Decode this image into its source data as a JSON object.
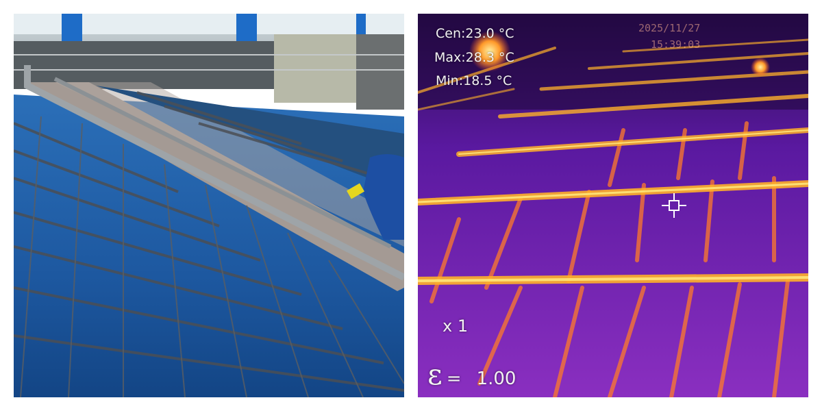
{
  "thermal": {
    "center_temp": "Cen:23.0 °C",
    "max_temp": "Max:28.3 °C",
    "min_temp": "Min:18.5 °C",
    "date": "2025/11/27",
    "time": "15:39:03",
    "zoom": "x 1",
    "emissivity_symbol": "ε",
    "emissivity_eq": "=",
    "emissivity_value": "1.00"
  },
  "colors": {
    "panel_blue": "#1f5fa8",
    "thermal_purple": "#7a1aa8",
    "hot_yellow": "#ffd23a"
  }
}
